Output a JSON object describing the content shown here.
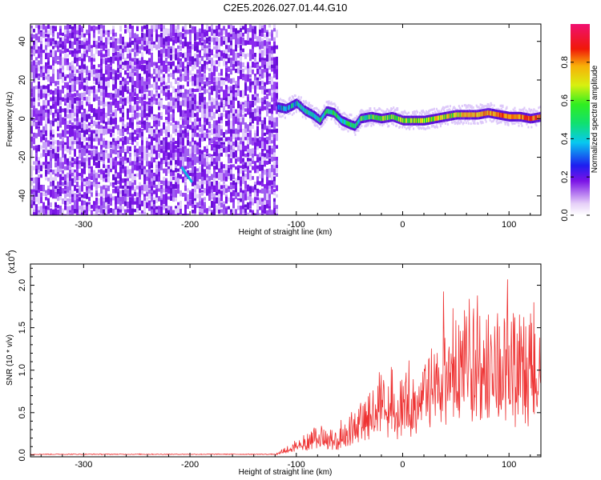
{
  "title": "C2E5.2026.027.01.44.G10",
  "chart_data": [
    {
      "type": "heatmap",
      "name": "spectrogram",
      "xlabel": "Height of straight line (km)",
      "ylabel": "Frequency (Hz)",
      "xlim": [
        -350,
        130
      ],
      "ylim": [
        -50,
        49
      ],
      "x_ticks": [
        -300,
        -200,
        -100,
        0,
        100
      ],
      "y_ticks": [
        -40,
        -20,
        0,
        20,
        40
      ],
      "noise_region_x": [
        -350,
        -118
      ],
      "signal_x_range": [
        -118,
        130
      ],
      "signal_trace": {
        "x": [
          -118,
          -110,
          -100,
          -92,
          -85,
          -78,
          -72,
          -65,
          -58,
          -50,
          -45,
          -40,
          -30,
          -20,
          -10,
          0,
          10,
          20,
          30,
          40,
          50,
          60,
          70,
          80,
          90,
          100,
          110,
          120,
          130
        ],
        "y": [
          6,
          5,
          8,
          4,
          2,
          -1,
          4,
          3,
          -1,
          -3,
          -4,
          0,
          1,
          0,
          1,
          -1,
          -1,
          -1,
          0,
          1,
          2,
          2,
          2,
          3,
          2,
          1,
          1,
          0,
          1
        ]
      },
      "short_streak": {
        "x": [
          -208,
          -198
        ],
        "y": [
          -25,
          -33
        ]
      }
    },
    {
      "type": "colorbar",
      "name": "colorbar",
      "label": "Normalized spectral amplitude",
      "range": [
        0,
        1
      ],
      "ticks": [
        0.0,
        0.2,
        0.4,
        0.6,
        0.8
      ],
      "tick_labels": [
        "0.0",
        "0.2",
        "0.4",
        "0.6",
        "0.8"
      ]
    },
    {
      "type": "line",
      "name": "snr",
      "xlabel": "Height of straight line (km)",
      "ylabel": "SNR (10 * v/v)",
      "scale_label": "(x10",
      "scale_exponent": "4",
      "xlim": [
        -350,
        130
      ],
      "ylim": [
        -0.02,
        2.25
      ],
      "x_ticks": [
        -300,
        -200,
        -100,
        0,
        100
      ],
      "y_ticks": [
        0.0,
        0.5,
        1.0,
        1.5,
        2.0
      ],
      "y_tick_labels": [
        "0.0",
        "0.5",
        "1.0",
        "1.5",
        "2.0"
      ],
      "series_color": "#ee3333",
      "envelope": {
        "x": [
          -350,
          -120,
          -100,
          -90,
          -80,
          -70,
          -60,
          -50,
          -40,
          -30,
          -20,
          -10,
          0,
          10,
          20,
          30,
          40,
          50,
          60,
          70,
          80,
          90,
          100,
          110,
          120,
          130
        ],
        "base": [
          0.0,
          0.0,
          0.08,
          0.1,
          0.14,
          0.12,
          0.1,
          0.18,
          0.3,
          0.4,
          0.48,
          0.52,
          0.4,
          0.55,
          0.7,
          0.75,
          0.85,
          0.9,
          0.95,
          0.95,
          0.9,
          0.85,
          0.8,
          0.7,
          0.6,
          0.7
        ],
        "amp": [
          0.01,
          0.01,
          0.12,
          0.18,
          0.25,
          0.22,
          0.2,
          0.35,
          0.45,
          0.55,
          0.6,
          0.6,
          0.6,
          0.7,
          0.75,
          0.8,
          0.85,
          0.9,
          1.0,
          1.05,
          1.0,
          1.1,
          1.2,
          1.25,
          1.3,
          1.2
        ]
      }
    }
  ]
}
